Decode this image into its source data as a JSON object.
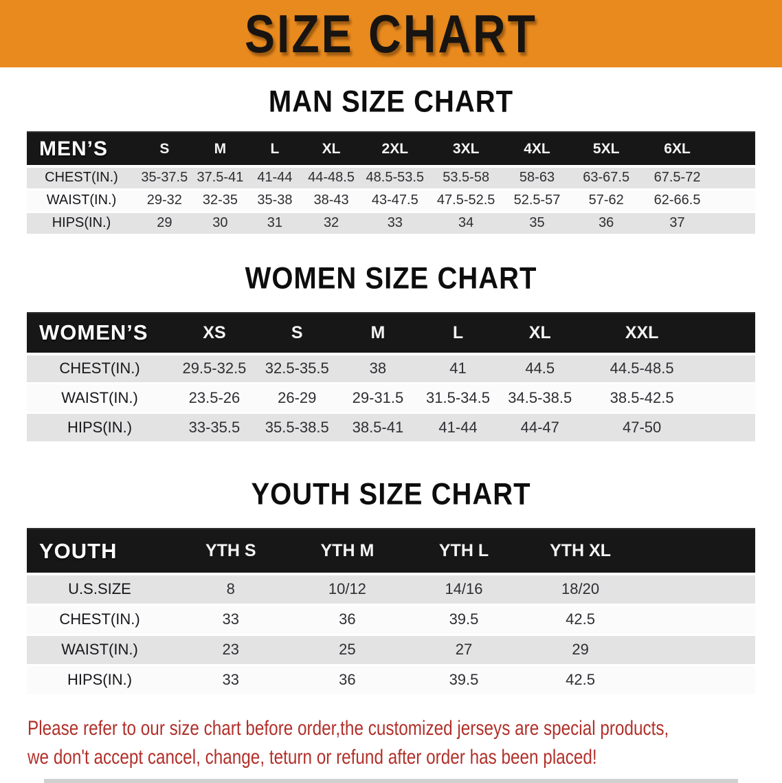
{
  "banner": {
    "title": "SIZE CHART"
  },
  "sections": [
    {
      "heading": "MAN SIZE CHART",
      "table": {
        "corner": "MEN’S",
        "sizes": [
          "S",
          "M",
          "L",
          "XL",
          "2XL",
          "3XL",
          "4XL",
          "5XL",
          "6XL"
        ],
        "rows": [
          {
            "label": "CHEST(IN.)",
            "values": [
              "35-37.5",
              "37.5-41",
              "41-44",
              "44-48.5",
              "48.5-53.5",
              "53.5-58",
              "58-63",
              "63-67.5",
              "67.5-72"
            ]
          },
          {
            "label": "WAIST(IN.)",
            "values": [
              "29-32",
              "32-35",
              "35-38",
              "38-43",
              "43-47.5",
              "47.5-52.5",
              "52.5-57",
              "57-62",
              "62-66.5"
            ]
          },
          {
            "label": "HIPS(IN.)",
            "values": [
              "29",
              "30",
              "31",
              "32",
              "33",
              "34",
              "35",
              "36",
              "37"
            ]
          }
        ]
      }
    },
    {
      "heading": "WOMEN SIZE CHART",
      "table": {
        "corner": "WOMEN’S",
        "sizes": [
          "XS",
          "S",
          "M",
          "L",
          "XL",
          "XXL"
        ],
        "rows": [
          {
            "label": "CHEST(IN.)",
            "values": [
              "29.5-32.5",
              "32.5-35.5",
              "38",
              "41",
              "44.5",
              "44.5-48.5"
            ]
          },
          {
            "label": "WAIST(IN.)",
            "values": [
              "23.5-26",
              "26-29",
              "29-31.5",
              "31.5-34.5",
              "34.5-38.5",
              "38.5-42.5"
            ]
          },
          {
            "label": "HIPS(IN.)",
            "values": [
              "33-35.5",
              "35.5-38.5",
              "38.5-41",
              "41-44",
              "44-47",
              "47-50"
            ]
          }
        ]
      }
    },
    {
      "heading": "YOUTH SIZE CHART",
      "table": {
        "corner": "YOUTH",
        "sizes": [
          "YTH S",
          "YTH M",
          "YTH L",
          "YTH XL"
        ],
        "rows": [
          {
            "label": "U.S.SIZE",
            "values": [
              "8",
              "10/12",
              "14/16",
              "18/20"
            ]
          },
          {
            "label": "CHEST(IN.)",
            "values": [
              "33",
              "36",
              "39.5",
              "42.5"
            ]
          },
          {
            "label": "WAIST(IN.)",
            "values": [
              "23",
              "25",
              "27",
              "29"
            ]
          },
          {
            "label": "HIPS(IN.)",
            "values": [
              "33",
              "36",
              "39.5",
              "42.5"
            ]
          }
        ]
      }
    }
  ],
  "disclaimer": {
    "line1": "Please refer to our size chart before order,the customized jerseys are special products,",
    "line2": "we don't accept cancel, change, teturn or refund after order has been placed!"
  },
  "colors": {
    "banner_bg": "#E88A1E",
    "header_bar": "#171717",
    "row_gray": "#E3E3E3",
    "row_white": "#FBFBFB",
    "disclaimer_red": "#B1302A"
  }
}
